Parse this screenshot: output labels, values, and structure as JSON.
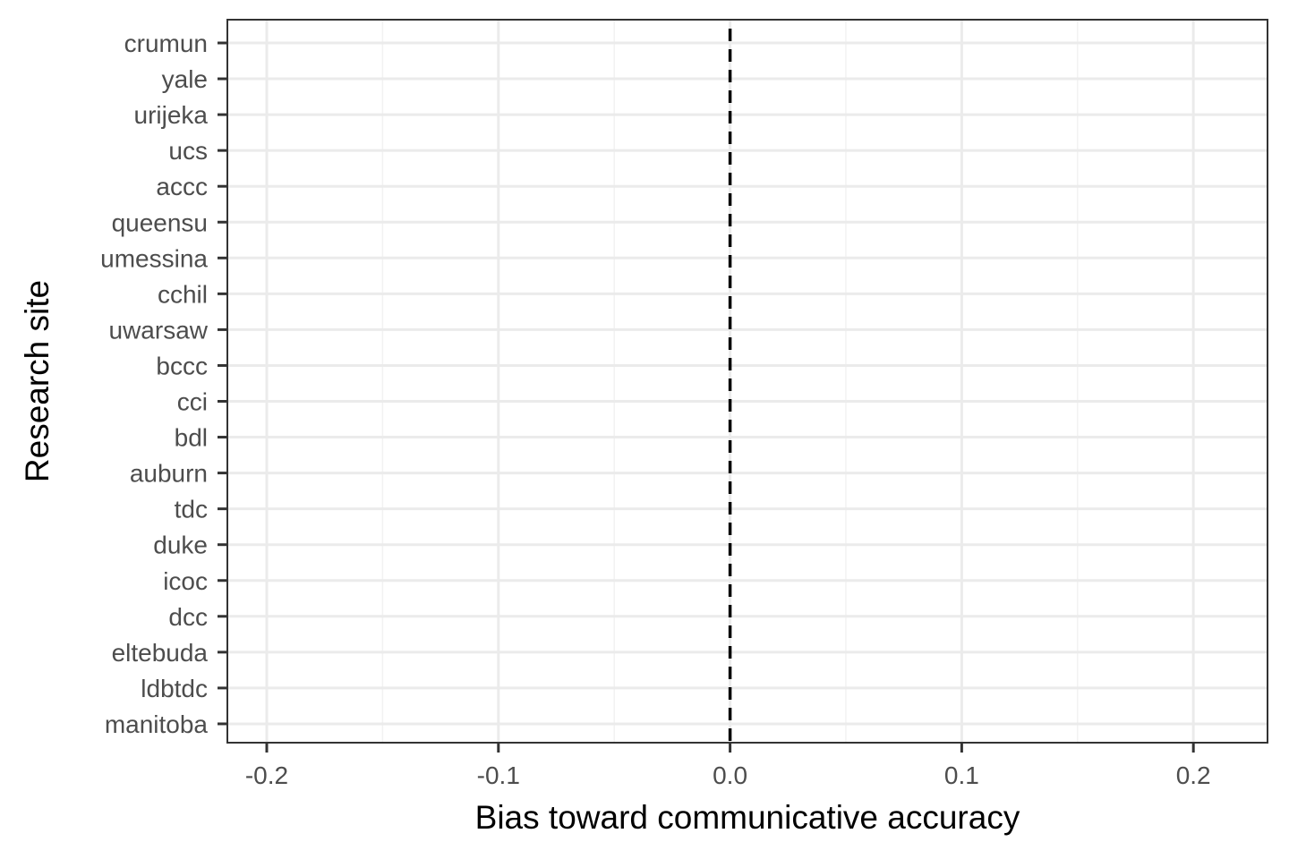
{
  "chart_data": {
    "type": "scatter",
    "xlabel": "Bias toward communicative accuracy",
    "ylabel": "Research site",
    "xlim": [
      -0.217,
      0.232
    ],
    "x_ticks": [
      -0.2,
      -0.1,
      0.0,
      0.1,
      0.2
    ],
    "x_tick_labels": [
      "-0.2",
      "-0.1",
      "0.0",
      "0.1",
      "0.2"
    ],
    "categories": [
      "crumun",
      "yale",
      "urijeka",
      "ucs",
      "accc",
      "queensu",
      "umessina",
      "cchil",
      "uwarsaw",
      "bccc",
      "cci",
      "bdl",
      "auburn",
      "tdc",
      "duke",
      "icoc",
      "dcc",
      "eltebuda",
      "ldbtdc",
      "manitoba"
    ],
    "series": [],
    "reference_line": {
      "x": 0.0,
      "style": "dashed",
      "color": "#000000"
    },
    "grid": true,
    "theme": "bw",
    "colors": {
      "background": "#ffffff",
      "grid_major": "#ebebeb",
      "grid_minor": "#f2f2f2",
      "panel_border": "#333333",
      "tick_text": "#4d4d4d",
      "title_text": "#000000"
    }
  }
}
